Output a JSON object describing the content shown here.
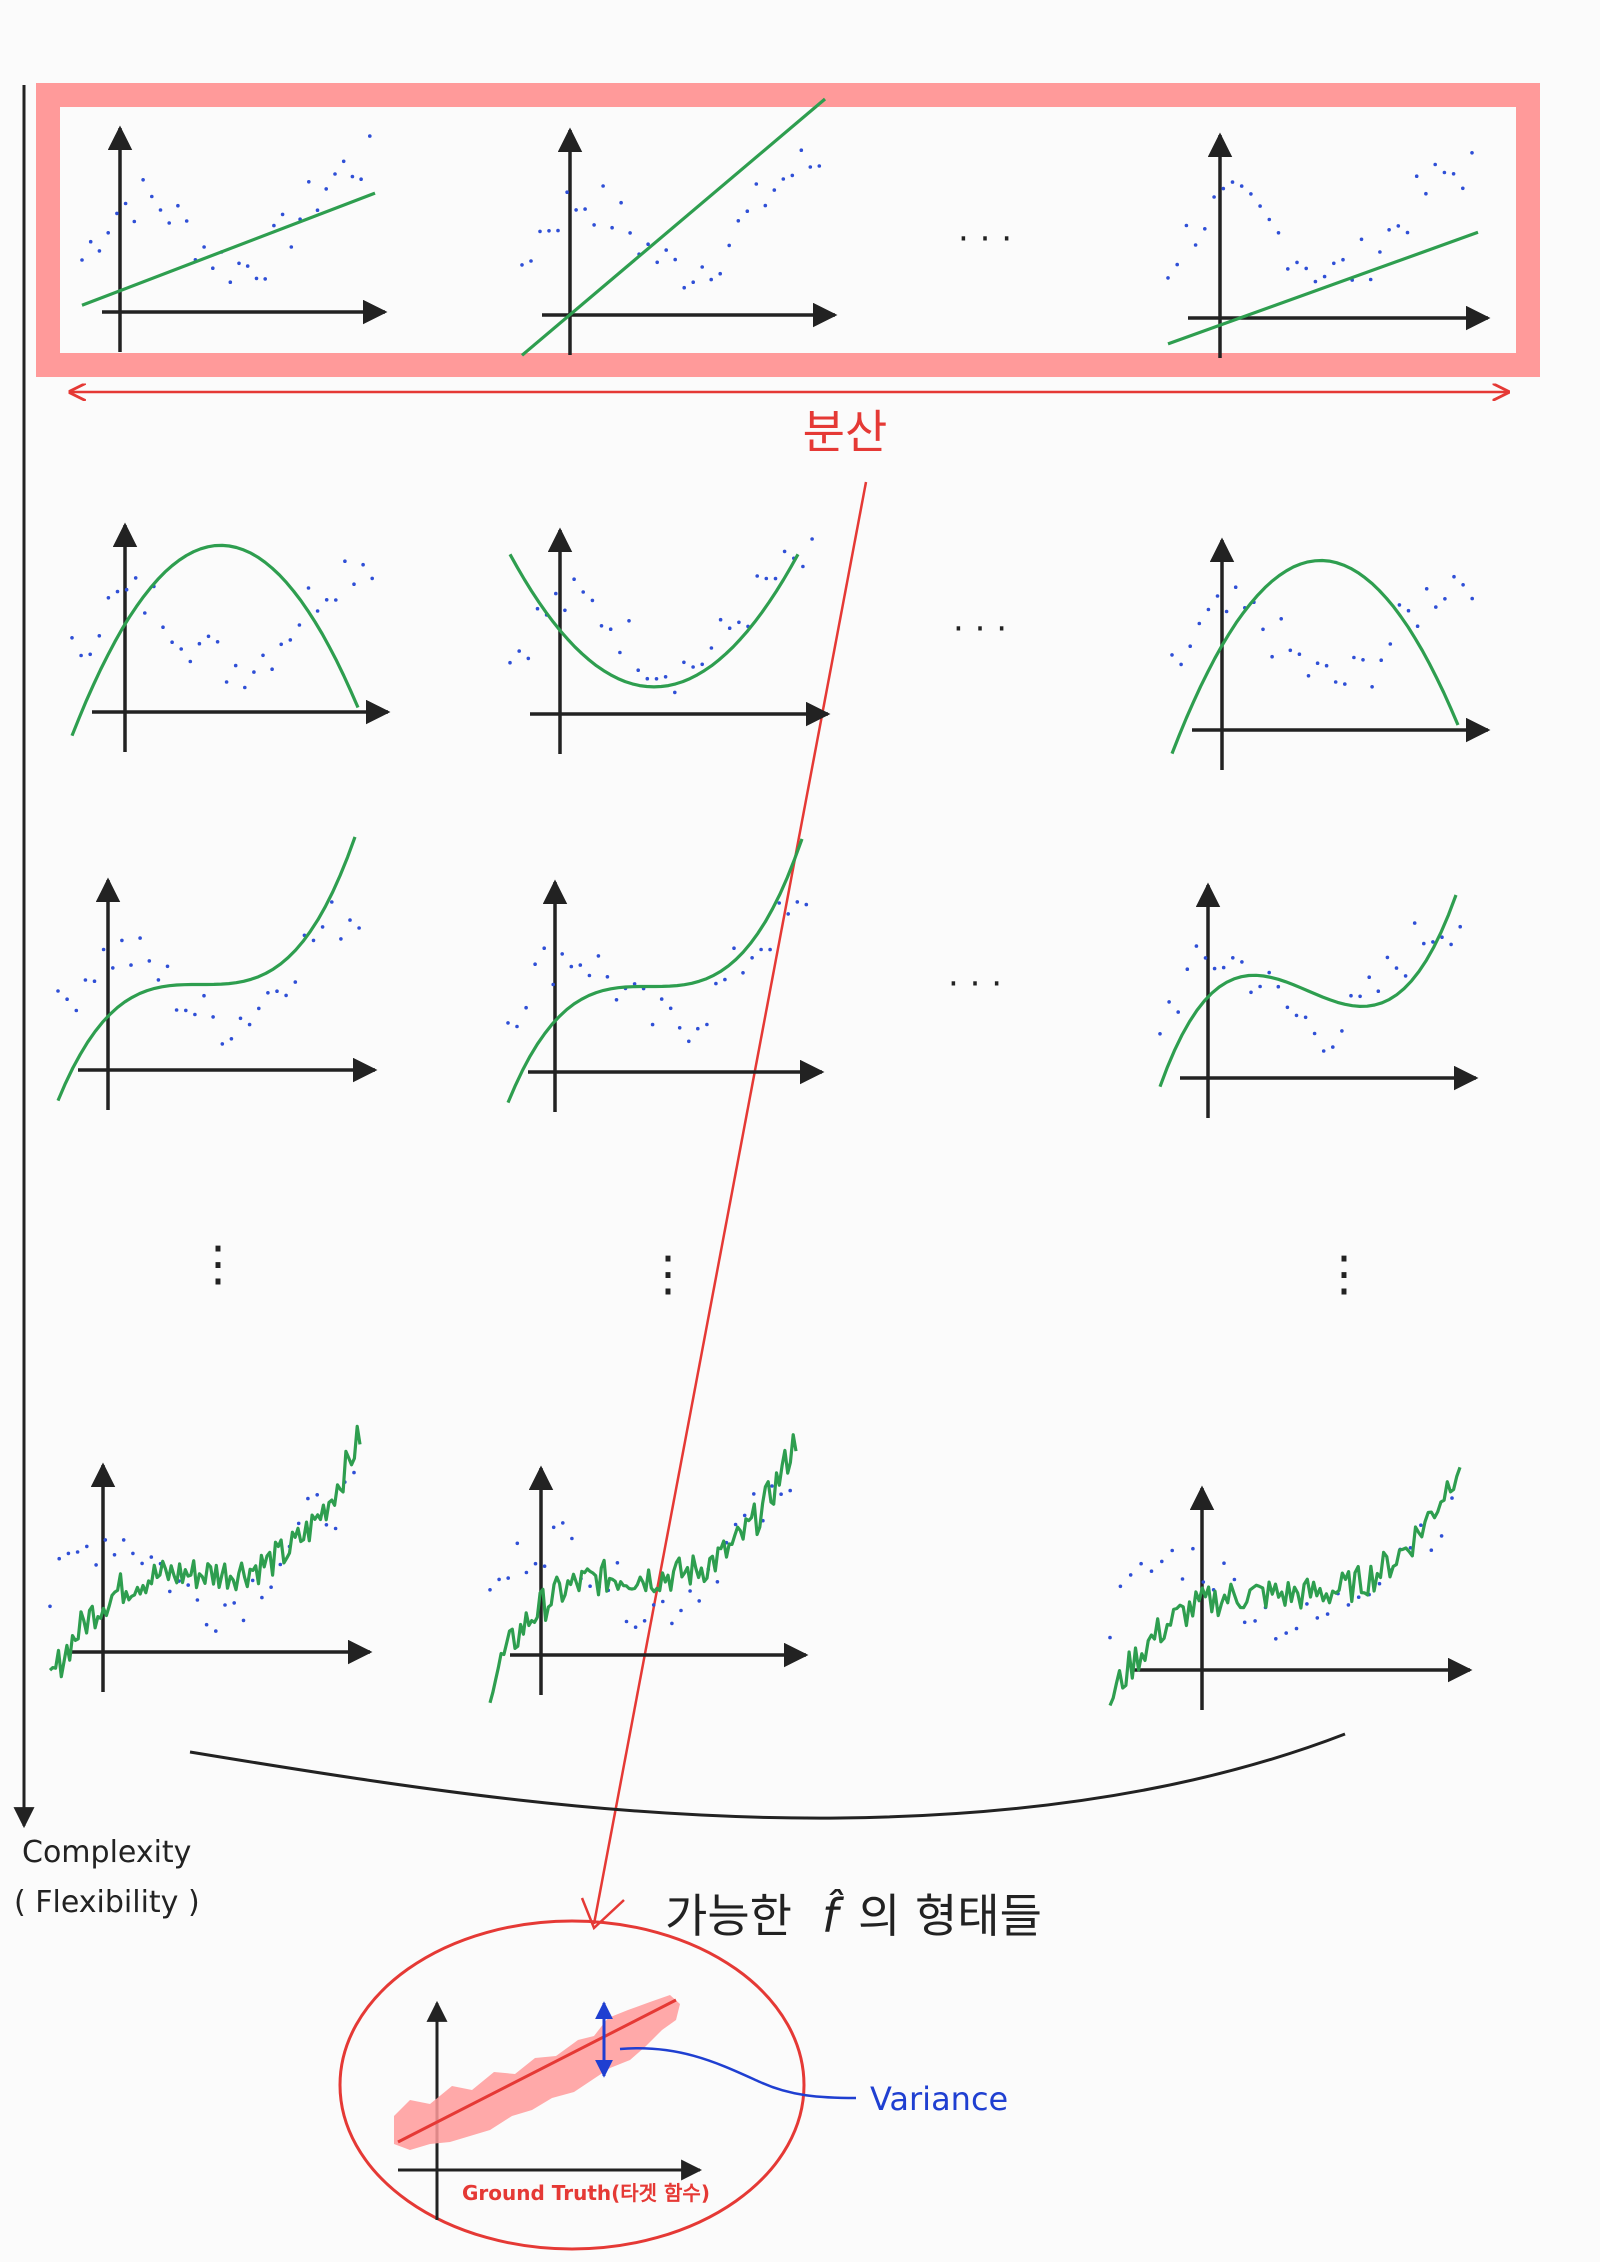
{
  "labels": {
    "variance_kr": "분산",
    "complexity": "Complexity",
    "flexibility": "( Flexibility )",
    "possible_forms_pre": "가능한",
    "f_hat": "f̂",
    "possible_forms_post": "의 형태들",
    "variance_en": "Variance",
    "ground_truth": "Ground Truth(타겟 함수)",
    "dots_h": "· · ·",
    "dots_v": "⋮"
  },
  "colors": {
    "axis": "#222222",
    "fit": "#2e9e4f",
    "points": "#2f4fd6",
    "highlight": "#ff9a9a",
    "arrow": "#e53935",
    "variance": "#1f3fd1"
  },
  "rows": [
    {
      "degree": 1,
      "label": "linear"
    },
    {
      "degree": 2,
      "label": "quadratic"
    },
    {
      "degree": 3,
      "label": "cubic"
    },
    {
      "degree": "high",
      "label": "overfit"
    }
  ]
}
